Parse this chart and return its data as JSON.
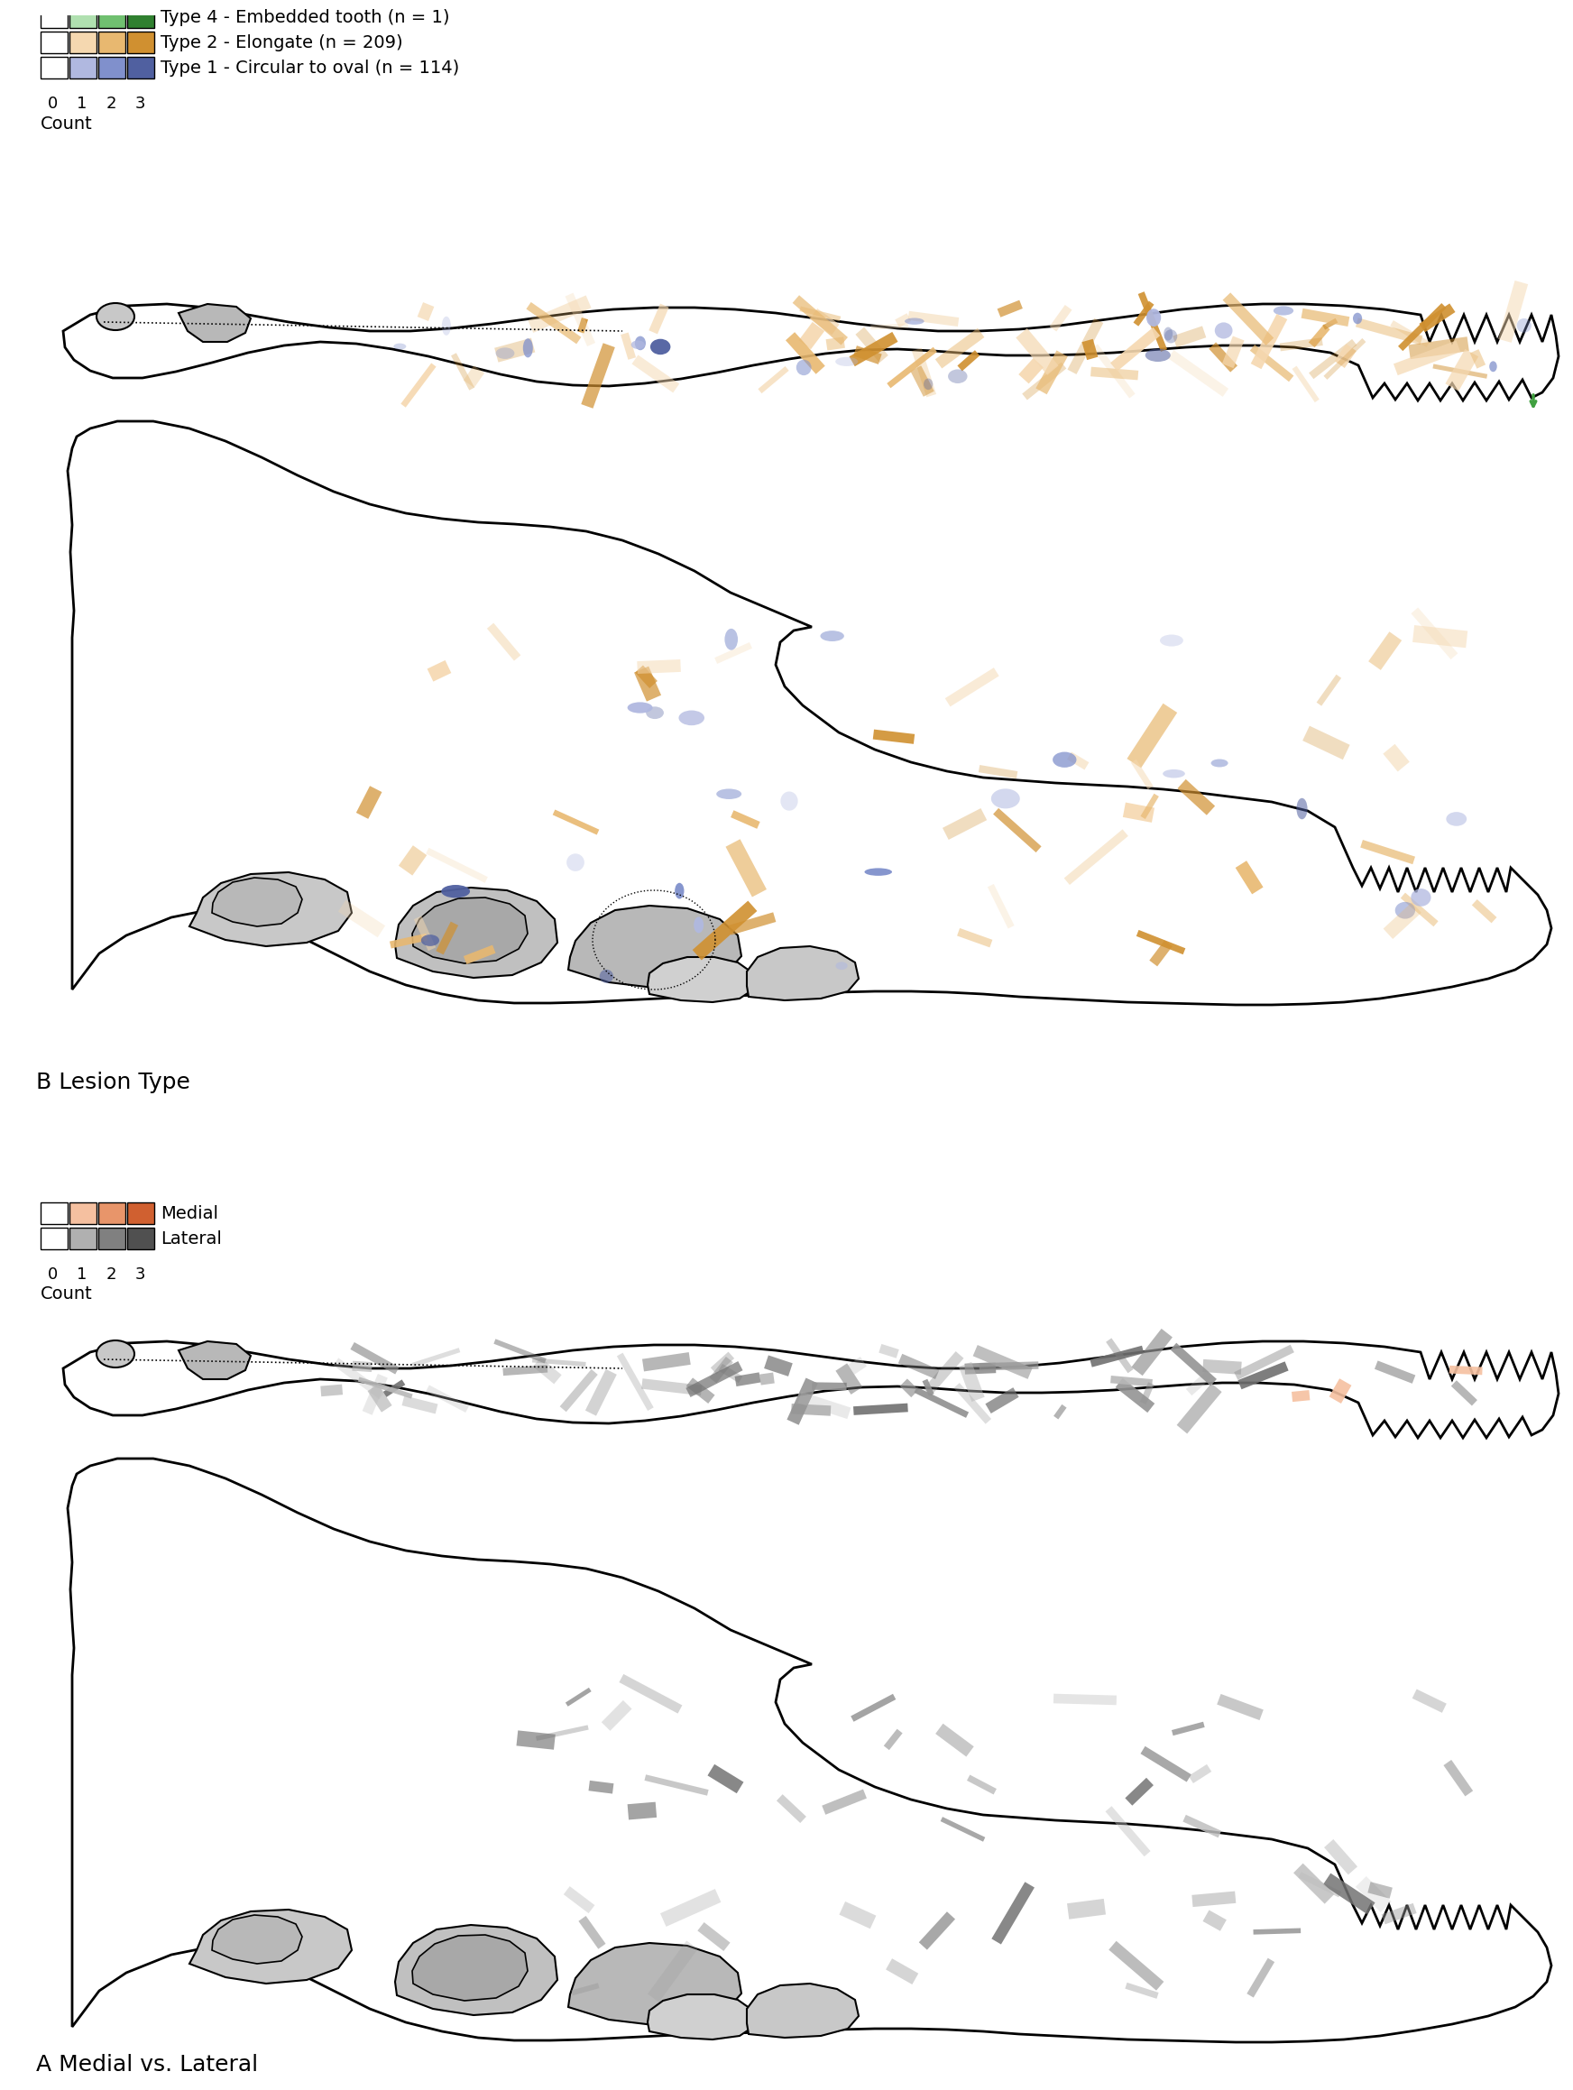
{
  "title_A": "A Medial vs. Lateral",
  "title_B": "B Lesion Type",
  "figure_bg": "#ffffff",
  "panel_A_legend": {
    "title": "Count",
    "labels": [
      "Lateral",
      "Medial"
    ],
    "lateral_colors": [
      "#ffffff",
      "#b0b0b0",
      "#808080",
      "#505050"
    ],
    "medial_colors": [
      "#ffffff",
      "#f5c0a0",
      "#e8956a",
      "#d06030"
    ],
    "count_labels": [
      "0",
      "1",
      "2",
      "3"
    ]
  },
  "panel_B_legend": {
    "title": "Count",
    "labels": [
      "Type 1 - Circular to oval (n = 114)",
      "Type 2 - Elongate (n = 209)",
      "Type 4 - Embedded tooth (n = 1)"
    ],
    "type1_colors": [
      "#ffffff",
      "#b0b8e0",
      "#8090cc",
      "#5060a0"
    ],
    "type2_colors": [
      "#ffffff",
      "#f5d8b0",
      "#e8b870",
      "#d09030"
    ],
    "type4_colors": [
      "#ffffff",
      "#b0e0b0",
      "#70c070",
      "#308030"
    ],
    "count_labels": [
      "0",
      "1",
      "2",
      "3"
    ]
  },
  "arrow_color": "#40a040",
  "label_fontsize": 18,
  "legend_fontsize": 14,
  "count_fontsize": 13
}
